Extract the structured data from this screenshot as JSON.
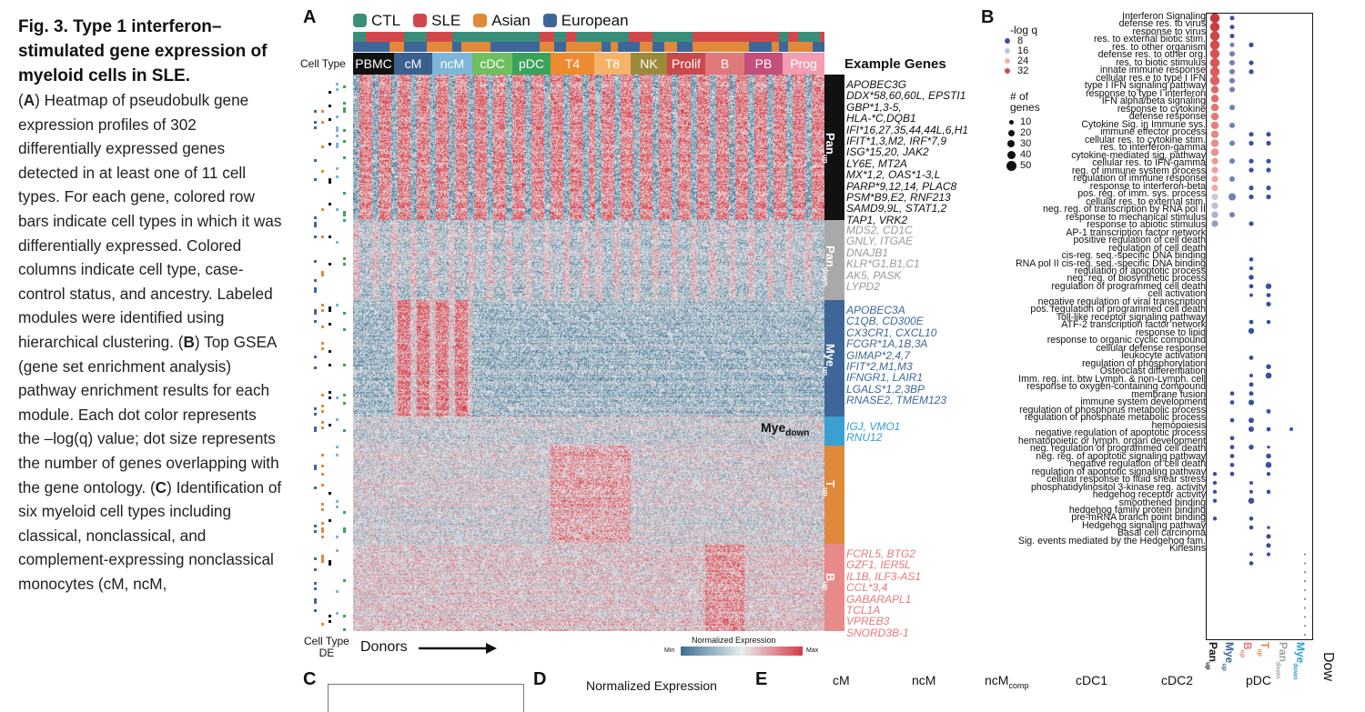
{
  "caption": {
    "title": "Fig. 3. Type 1 interferon–stimulated gene expression of myeloid cells in SLE.",
    "body_A_label": "A",
    "body_A": "Heatmap of pseudobulk gene expression profiles of 302 differentially expressed genes detected in at least one of 11 cell types. For each gene, colored row bars indicate cell types in which it was differentially expressed. Colored columns indicate cell type, case-control status, and ancestry. Labeled modules were identified using hierarchical clustering.",
    "body_B_label": "B",
    "body_B": "Top GSEA (gene set enrichment analysis) pathway enrichment results for each module. Each dot color represents the –log(q) value; dot size represents the number of genes overlapping with the gene ontology.",
    "body_C_label": "C",
    "body_C": "Identification of six myeloid cell types including classical, nonclassical, and complement-expressing nonclassical monocytes (cM, ncM,"
  },
  "panelA": {
    "label": "A",
    "legend": [
      {
        "label": "CTL",
        "color": "#3a8f7a"
      },
      {
        "label": "SLE",
        "color": "#d2474b"
      },
      {
        "label": "Asian",
        "color": "#e0893a"
      },
      {
        "label": "European",
        "color": "#3e6699"
      }
    ],
    "cell_type_label": "Cell Type",
    "cell_types": [
      {
        "label": "PBMC",
        "color": "#111111"
      },
      {
        "label": "cM",
        "color": "#3b5f8f"
      },
      {
        "label": "ncM",
        "color": "#7eb5d9"
      },
      {
        "label": "cDC",
        "color": "#6fbf5f"
      },
      {
        "label": "pDC",
        "color": "#3aa35a"
      },
      {
        "label": "T4",
        "color": "#ee8a30"
      },
      {
        "label": "T8",
        "color": "#f6b26b"
      },
      {
        "label": "NK",
        "color": "#9b8a3a"
      },
      {
        "label": "Prolif",
        "color": "#c9494c"
      },
      {
        "label": "B",
        "color": "#e07a7a"
      },
      {
        "label": "PB",
        "color": "#c44f7a"
      },
      {
        "label": "Prog",
        "color": "#f29db2"
      }
    ],
    "example_genes_header": "Example Genes",
    "modules": [
      {
        "name": "Pan",
        "sub": "up",
        "color": "#111111",
        "text_color": "#111111",
        "genes": [
          "APOBEC3G",
          "DDX*58,60,60L, EPSTI1",
          "GBP*1,3-5,",
          "HLA-*C,DQB1",
          "IFI*16,27,35,44,44L,6,H1",
          "IFIT*1,3,M2, IRF*7,9",
          "ISG*15,20, JAK2",
          "LY6E, MT2A",
          "MX*1,2, OAS*1-3,L",
          "PARP*9,12,14, PLAC8",
          "PSM*B9,E2, RNF213",
          "SAMD9,9L, STAT1,2",
          "TAP1, VRK2"
        ]
      },
      {
        "name": "Pan",
        "sub": "down",
        "color": "#a9a9a9",
        "text_color": "#9a9a9a",
        "genes": [
          "MDS2, CD1C",
          "GNLY, ITGAE",
          "DNAJB1",
          "KLR*G1,B1,C1",
          "AK5, PASK",
          "LYPD2"
        ]
      },
      {
        "name": "Mye",
        "sub": "up",
        "color": "#3e6699",
        "text_color": "#3e6699",
        "genes": [
          "APOBEC3A",
          "C1QB, CD300E",
          "CX3CR1, CXCL10",
          "FCGR*1A,1B,3A",
          "GIMAP*2,4,7",
          "IFIT*2,M1,M3",
          "IFNGR1, LAIR1",
          "LGALS*1,2,3BP",
          "RNASE2, TMEM123"
        ]
      },
      {
        "name": "Mye",
        "sub": "down",
        "color": "#3aa0d0",
        "text_color": "#2f9fd0",
        "genes": [
          "IGJ, VMO1",
          "RNU12"
        ]
      },
      {
        "name": "T",
        "sub": "up",
        "color": "#e0893a",
        "text_color": "#e0893a",
        "genes": []
      },
      {
        "name": "B",
        "sub": "up",
        "color": "#e88a8a",
        "text_color": "#e8787a",
        "genes": [
          "FCRL5, BTG2",
          "GZF1, IER5L",
          "IL1B, ILF3-AS1",
          "CCL*3,4",
          "GABARAPL1",
          "TCL1A",
          "VPREB3",
          "SNORD3B-1"
        ]
      }
    ],
    "mye_down_label": "Mye",
    "mye_down_sub": "down",
    "celltype_de_label": "Cell Type",
    "celltype_de_sub": "DE",
    "donors_label": "Donors",
    "colorbar": {
      "title": "Normalized Expression",
      "min": "Min",
      "max": "Max",
      "low": "#3d6f8e",
      "mid": "#e8eef0",
      "high": "#d63a46"
    }
  },
  "panelB": {
    "label": "B",
    "legend_q_title": "-log q",
    "legend_q": [
      "8",
      "16",
      "24",
      "32"
    ],
    "legend_q_colors": [
      "#3b4fa0",
      "#b9c7dd",
      "#f0b8a0",
      "#d2474b"
    ],
    "legend_n_title": "# of genes",
    "legend_n": [
      "10",
      "20",
      "30",
      "40",
      "50"
    ],
    "terms": [
      "Interferon Signaling",
      "defense res. to virus",
      "response to virus",
      "res. to external biotic stim.",
      "res. to other organism",
      "defense res. to other org.",
      "res. to biotic stimulus",
      "innate immune response",
      "cellular res.e to type I IFN",
      "type I IFN signaling pathway",
      "response to type I interferon",
      "IFN alpha/beta signaling",
      "response to cytokine",
      "defense response",
      "Cytokine Sig. in Immune sys.",
      "immune effector process",
      "cellular res. to cytokine stim.",
      "res. to interferon-gamma",
      "cytokine-mediated sig. pathway",
      "cellular res. to IFN-gamma",
      "reg. of immune system process",
      "regulation of immune response",
      "response to interferon-beta",
      "pos. reg. of imm. sys. process",
      "cellular res. to external stim.",
      "neg. reg. of transcription by RNA pol II",
      "response to mechanical stimulus",
      "response to abiotic stimulus",
      "AP-1 transcription factor network",
      "positive regulation of cell death",
      "regulation of cell death",
      "cis-reg. seq.-specific DNA binding",
      "RNA pol II cis-reg. seq.-specific DNA binding",
      "regulation of apoptotic process",
      "neg. reg. of biosynthetic process",
      "regulation of programmed cell death",
      "cell activation",
      "negative regulation of viral transcription",
      "pos. regulation of programmed cell death",
      "Toll-like receptor signaling pathway",
      "ATF-2 transcription factor network",
      "response to lipid",
      "response to organic cyclic compound",
      "cellular defense response",
      "leukocyte activation",
      "regulation of phosphorylation",
      "Osteoclast differentiation",
      "Imm. reg. int. btw Lymph. & non-Lymph. cell",
      "response to oxygen-containing compound",
      "membrane fusion",
      "immune system development",
      "regulation of phosphorus metabolic process",
      "regulation of phosphate metabolic process",
      "hemopoiesis",
      "negative regulation of apoptotic process",
      "hematopoietic or lymph. organ development",
      "neg. regulation of programmed cell death",
      "neg. reg. of apoptotic signaling pathway",
      "negative regulation of cell death",
      "regulation of apoptotic signaling pathway",
      "cellular response to fluid shear stress",
      "phosphatidylinositol 3-kinase reg. activity",
      "hedgehog receptor activity",
      "smoothened binding",
      "hedgehog family protein binding",
      "pre-mRNA branch point binding",
      "Hedgehog signaling pathway",
      "Basal cell carcinoma",
      "Sig. events mediated by the Hedgehog fam.",
      "Kinesins"
    ],
    "modules": [
      {
        "name": "Pan",
        "sub": "up",
        "color": "#111111"
      },
      {
        "name": "Mye",
        "sub": "up",
        "color": "#3e6699"
      },
      {
        "name": "B",
        "sub": "up",
        "color": "#e8787a"
      },
      {
        "name": "T",
        "sub": "up",
        "color": "#e0893a"
      },
      {
        "name": "Pan",
        "sub": "down",
        "color": "#a0a0a0"
      },
      {
        "name": "Mye",
        "sub": "down",
        "color": "#2f9fd0"
      }
    ],
    "cut_label": "Dow"
  },
  "bottom": {
    "C": "C",
    "D": "D",
    "D_title": "Normalized Expression",
    "E": "E",
    "E_cols": [
      {
        "label": "cM",
        "sub": ""
      },
      {
        "label": "ncM",
        "sub": ""
      },
      {
        "label": "ncM",
        "sub": "comp"
      },
      {
        "label": "cDC1",
        "sub": ""
      },
      {
        "label": "cDC2",
        "sub": ""
      },
      {
        "label": "pDC",
        "sub": ""
      }
    ]
  }
}
